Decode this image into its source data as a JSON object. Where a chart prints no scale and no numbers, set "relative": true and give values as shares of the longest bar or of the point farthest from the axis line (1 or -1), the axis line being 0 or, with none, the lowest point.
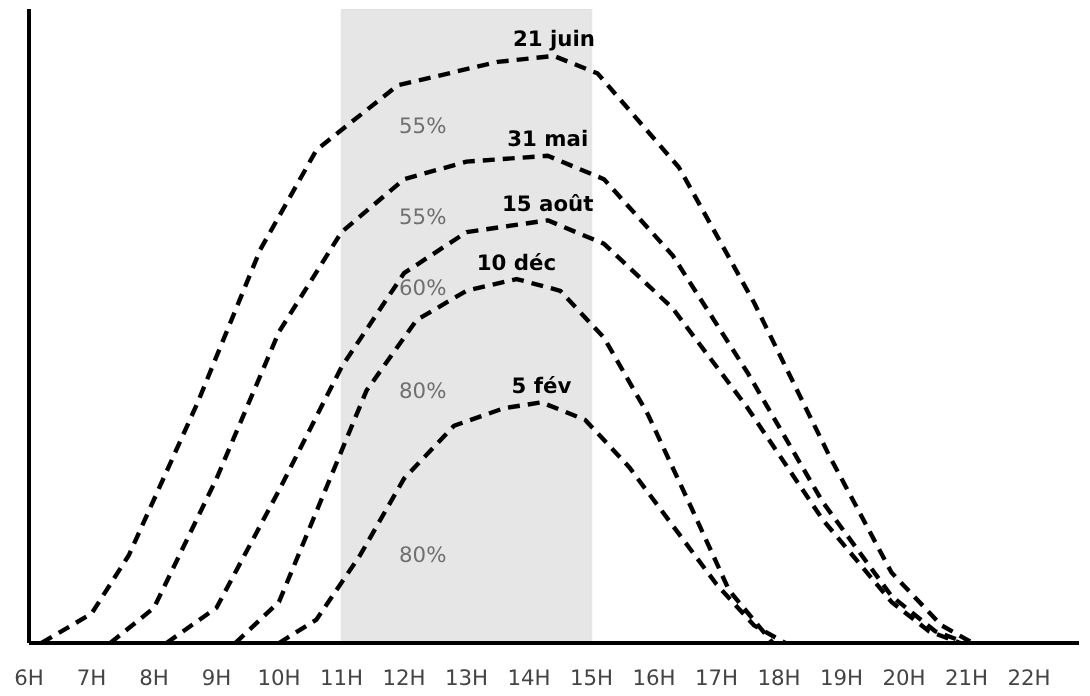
{
  "chart_data": {
    "type": "line",
    "relative": true,
    "line_style": "dashed",
    "marker": "none",
    "grid": false,
    "legend": false,
    "xlim": [
      6,
      22.8
    ],
    "xticks": [
      {
        "value": 6,
        "label": "6H"
      },
      {
        "value": 7,
        "label": "7H"
      },
      {
        "value": 8,
        "label": "8H"
      },
      {
        "value": 9,
        "label": "9H"
      },
      {
        "value": 10,
        "label": "10H"
      },
      {
        "value": 11,
        "label": "11H"
      },
      {
        "value": 12,
        "label": "12H"
      },
      {
        "value": 13,
        "label": "13H"
      },
      {
        "value": 14,
        "label": "14H"
      },
      {
        "value": 15,
        "label": "15H"
      },
      {
        "value": 16,
        "label": "16H"
      },
      {
        "value": 17,
        "label": "17H"
      },
      {
        "value": 18,
        "label": "18H"
      },
      {
        "value": 19,
        "label": "19H"
      },
      {
        "value": 20,
        "label": "20H"
      },
      {
        "value": 21,
        "label": "21H"
      },
      {
        "value": 22,
        "label": "22H"
      }
    ],
    "bands": [
      {
        "axis": "x",
        "from": 11,
        "to": 15,
        "color": "#e6e6e6"
      }
    ],
    "series": [
      {
        "name": "21 juin",
        "color": "#000000",
        "x": [
          6.2,
          7,
          7.6,
          8.7,
          9.7,
          10.6,
          11.9,
          13.5,
          14.4,
          15.1,
          16.4,
          17.6,
          18.8,
          19.8,
          20.6,
          21.1
        ],
        "values": [
          0,
          0.05,
          0.15,
          0.41,
          0.67,
          0.84,
          0.95,
          0.99,
          1.0,
          0.97,
          0.81,
          0.58,
          0.32,
          0.12,
          0.03,
          0
        ]
      },
      {
        "name": "31 mai",
        "color": "#000000",
        "x": [
          7.3,
          8,
          9,
          10,
          11,
          12,
          13,
          14.3,
          15.2,
          16.3,
          17.5,
          18.7,
          19.8,
          20.5,
          21.0
        ],
        "values": [
          0,
          0.06,
          0.28,
          0.53,
          0.7,
          0.79,
          0.82,
          0.83,
          0.79,
          0.66,
          0.46,
          0.24,
          0.08,
          0.02,
          0
        ]
      },
      {
        "name": "15 août",
        "color": "#000000",
        "x": [
          8.2,
          9,
          10,
          11,
          12,
          13,
          14.3,
          15.2,
          16.3,
          17.5,
          18.7,
          19.8,
          20.4,
          20.9
        ],
        "values": [
          0,
          0.06,
          0.26,
          0.47,
          0.63,
          0.7,
          0.72,
          0.68,
          0.57,
          0.4,
          0.21,
          0.07,
          0.02,
          0
        ]
      },
      {
        "name": "10 déc",
        "color": "#000000",
        "x": [
          9.3,
          10,
          10.7,
          11.4,
          12.2,
          13,
          13.8,
          14.5,
          15.2,
          15.9,
          16.6,
          17.2,
          17.9
        ],
        "values": [
          0,
          0.07,
          0.25,
          0.43,
          0.55,
          0.6,
          0.62,
          0.6,
          0.52,
          0.39,
          0.23,
          0.09,
          0
        ]
      },
      {
        "name": "5 fév",
        "color": "#000000",
        "x": [
          10,
          10.6,
          11.3,
          12,
          12.8,
          13.6,
          14.2,
          14.9,
          15.6,
          16.3,
          17,
          17.6,
          18.1
        ],
        "values": [
          0,
          0.04,
          0.15,
          0.28,
          0.37,
          0.4,
          0.41,
          0.38,
          0.3,
          0.2,
          0.1,
          0.03,
          0
        ]
      }
    ],
    "annotations": [
      "55%",
      "55%",
      "60%",
      "80%",
      "80%"
    ]
  }
}
